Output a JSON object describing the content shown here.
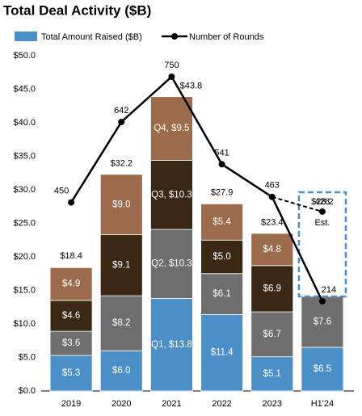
{
  "chart_data": {
    "type": "bar",
    "title": "Total Deal Activity ($B)",
    "categories": [
      "2019",
      "2020",
      "2021",
      "2022",
      "2023",
      "H1'24"
    ],
    "bar_legend": {
      "name": "Total Amount Raised ($B)",
      "color": "#4a8fc7"
    },
    "series": [
      {
        "color": "#4a8fc7",
        "values": [
          5.3,
          6.0,
          13.8,
          11.4,
          5.1,
          6.5
        ],
        "value_labels": [
          "$5.3",
          "$6.0",
          "Q1, $13.8",
          "$11.4",
          "$5.1",
          "$6.5"
        ]
      },
      {
        "color": "#6e6e6e",
        "values": [
          3.6,
          8.2,
          10.3,
          6.1,
          6.7,
          7.6
        ],
        "value_labels": [
          "$3.6",
          "$8.2",
          "Q2, $10.3",
          "$6.1",
          "$6.7",
          "$7.6"
        ]
      },
      {
        "color": "#3a2714",
        "values": [
          4.6,
          9.1,
          10.3,
          5.0,
          6.9,
          null
        ],
        "value_labels": [
          "$4.6",
          "$9.1",
          "Q3, $10.3",
          "$5.0",
          "$6.9",
          null
        ]
      },
      {
        "color": "#9b6b4b",
        "values": [
          4.9,
          9.0,
          9.5,
          5.4,
          4.8,
          null
        ],
        "value_labels": [
          "$4.9",
          "$9.0",
          "Q4, $9.5",
          "$5.4",
          "$4.8",
          null
        ]
      },
      {
        "name": "Number of Rounds",
        "color": "#000000",
        "axis": "y2",
        "values": [
          450,
          642,
          750,
          541,
          463,
          214
        ]
      }
    ],
    "totals": [
      18.4,
      32.2,
      43.8,
      27.9,
      23.4,
      null
    ],
    "total_labels": [
      "$18.4",
      "$32.2",
      "$43.8",
      "$27.9",
      "$23.4",
      null
    ],
    "estimate": {
      "value": 28.2,
      "label": "$28.2",
      "rounds": 428,
      "note": "Est."
    },
    "ylim": [
      0,
      50
    ],
    "yticks": [
      {
        "value": 0,
        "label": "$0.0"
      },
      {
        "value": 5,
        "label": "$5.0"
      },
      {
        "value": 10,
        "label": "$10.0"
      },
      {
        "value": 15,
        "label": "$15.0"
      },
      {
        "value": 20,
        "label": "$20.0"
      },
      {
        "value": 25,
        "label": "$25.0"
      },
      {
        "value": 30,
        "label": "$30.0"
      },
      {
        "value": 35,
        "label": "$35.0"
      },
      {
        "value": 40,
        "label": "$40.0"
      },
      {
        "value": 45,
        "label": "$45.0"
      },
      {
        "value": 50,
        "label": "$50.0"
      }
    ],
    "y2lim": [
      0,
      800
    ]
  }
}
